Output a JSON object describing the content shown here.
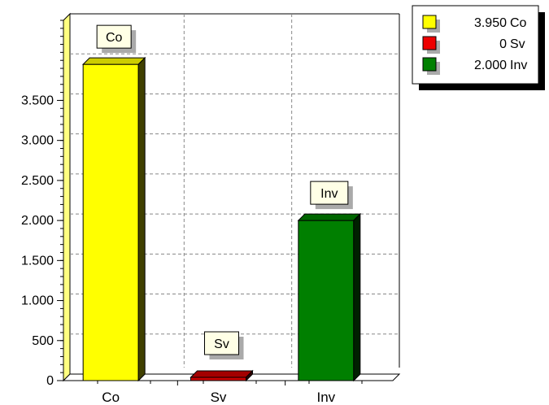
{
  "chart_data": {
    "type": "bar",
    "title": "",
    "xlabel": "",
    "ylabel": "",
    "ylim": [
      0,
      4500
    ],
    "y_ticks": [
      0,
      500,
      1000,
      1500,
      2000,
      2500,
      3000,
      3500
    ],
    "y_tick_labels": [
      "0",
      "500",
      "1.000",
      "1.500",
      "2.000",
      "2.500",
      "3.000",
      "3.500"
    ],
    "grid": true,
    "three_d": true,
    "legend_position": "top-right",
    "categories": [
      "Co",
      "Sv",
      "Inv"
    ],
    "values": [
      3950,
      0,
      2000
    ],
    "colors": [
      "#ffff00",
      "#cc0000",
      "#007f00"
    ],
    "bar_labels": [
      "Co",
      "Sv",
      "Inv"
    ],
    "legend": [
      {
        "value": "3.950",
        "name": "Co",
        "color": "#ffff00"
      },
      {
        "value": "0",
        "name": "Sv",
        "color": "#ee0000"
      },
      {
        "value": "2.000",
        "name": "Inv",
        "color": "#008000"
      }
    ]
  }
}
